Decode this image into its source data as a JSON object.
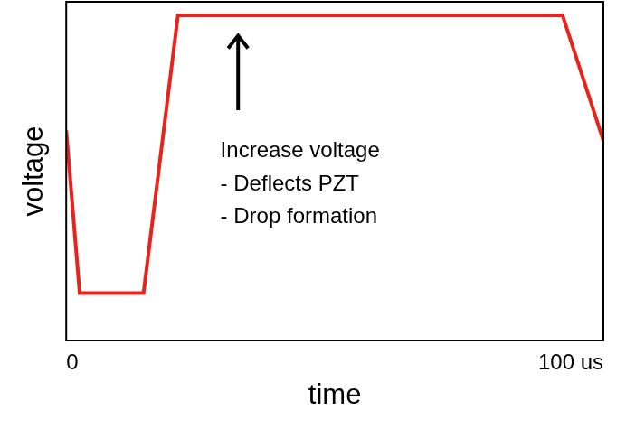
{
  "chart_data": {
    "type": "line",
    "x_label": "time",
    "y_label": "voltage",
    "x": [
      0,
      2.5,
      14.4,
      20.8,
      92.4,
      100
    ],
    "values": [
      62,
      14,
      14,
      96,
      96,
      59
    ],
    "color": "#e8231c",
    "marker": "none",
    "line_style": "solid",
    "xlim": [
      0,
      100
    ],
    "xticks": [
      0,
      {
        "value": 100,
        "label": "100 us"
      }
    ],
    "ylim": [
      0,
      100
    ],
    "grid": false,
    "tick_labels": "x",
    "annotation": {
      "text": [
        "Increase voltage",
        "- Deflects PZT",
        "- Drop formation"
      ]
    }
  }
}
